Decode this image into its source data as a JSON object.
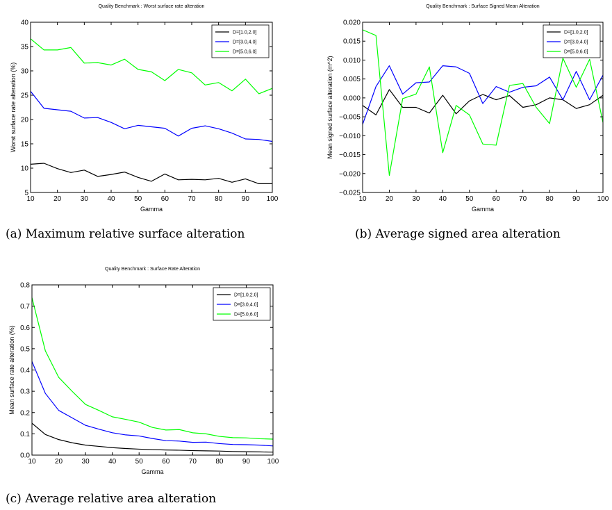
{
  "chart_data": [
    {
      "type": "line",
      "title": "Quality Benchmark : Worst surface rate alteration",
      "xlabel": "Gamma",
      "ylabel": "Worst surface rate alteration (%)",
      "xlim": [
        10,
        100
      ],
      "ylim": [
        5,
        40
      ],
      "xticks": [
        10,
        20,
        30,
        40,
        50,
        60,
        70,
        80,
        90,
        100
      ],
      "yticks": [
        5,
        10,
        15,
        20,
        25,
        30,
        35,
        40
      ],
      "ytick_labels": [
        "5",
        "10",
        "15",
        "20",
        "25",
        "30",
        "35",
        "40"
      ],
      "legend_position": "top-right",
      "grid": false,
      "x": [
        10,
        15,
        20,
        25,
        30,
        35,
        40,
        45,
        50,
        55,
        60,
        65,
        70,
        75,
        80,
        85,
        90,
        95,
        100
      ],
      "series": [
        {
          "name": "D=[1.0,2.0]",
          "color": "#000000",
          "values": [
            10.8,
            11.0,
            9.9,
            9.1,
            9.6,
            8.3,
            8.7,
            9.2,
            8.1,
            7.3,
            8.8,
            7.6,
            7.7,
            7.6,
            7.9,
            7.1,
            7.8,
            6.8,
            6.8
          ]
        },
        {
          "name": "D=[3.0,4.0]",
          "color": "#0000ff",
          "values": [
            25.8,
            22.3,
            22.0,
            21.7,
            20.3,
            20.4,
            19.4,
            18.1,
            18.8,
            18.5,
            18.2,
            16.6,
            18.2,
            18.7,
            18.1,
            17.2,
            16.0,
            15.9,
            15.5
          ]
        },
        {
          "name": "D=[5.0,6.0]",
          "color": "#00ff00",
          "values": [
            36.6,
            34.3,
            34.3,
            34.8,
            31.6,
            31.7,
            31.2,
            32.4,
            30.3,
            29.8,
            28.0,
            30.3,
            29.6,
            27.1,
            27.6,
            25.9,
            28.3,
            25.3,
            26.4
          ]
        }
      ]
    },
    {
      "type": "line",
      "title": "Quality Benchmark : Surface Signed Mean Alteration",
      "xlabel": "Gamma",
      "ylabel": "Mean signed surface alteration (m^2)",
      "xlim": [
        10,
        100
      ],
      "ylim": [
        -0.025,
        0.02
      ],
      "xticks": [
        10,
        20,
        30,
        40,
        50,
        60,
        70,
        80,
        90,
        100
      ],
      "yticks": [
        -0.025,
        -0.02,
        -0.015,
        -0.01,
        -0.005,
        0,
        0.005,
        0.01,
        0.015,
        0.02
      ],
      "ytick_labels": [
        "−0.025",
        "−0.020",
        "−0.015",
        "−0.010",
        "−0.005",
        "0.000",
        "0.005",
        "0.010",
        "0.015",
        "0.020"
      ],
      "legend_position": "top-right",
      "grid": false,
      "x": [
        10,
        15,
        20,
        25,
        30,
        35,
        40,
        45,
        50,
        55,
        60,
        65,
        70,
        75,
        80,
        85,
        90,
        95,
        100
      ],
      "series": [
        {
          "name": "D=[1.0,2.0]",
          "color": "#000000",
          "values": [
            -0.002,
            -0.0045,
            0.0022,
            -0.0025,
            -0.0025,
            -0.004,
            0.0007,
            -0.0042,
            -0.0008,
            0.0009,
            -0.0005,
            0.0006,
            -0.0025,
            -0.0018,
            0.0,
            -0.0005,
            -0.0028,
            -0.0018,
            0.0007
          ]
        },
        {
          "name": "D=[3.0,4.0]",
          "color": "#0000ff",
          "values": [
            -0.007,
            0.003,
            0.0085,
            0.001,
            0.004,
            0.0042,
            0.0085,
            0.0082,
            0.0065,
            -0.0015,
            0.003,
            0.0015,
            0.0028,
            0.0032,
            0.0055,
            -0.0005,
            0.007,
            -0.0005,
            0.006
          ]
        },
        {
          "name": "D=[5.0,6.0]",
          "color": "#00ff00",
          "values": [
            0.018,
            0.0165,
            -0.0205,
            -0.0002,
            0.001,
            0.0082,
            -0.0145,
            -0.002,
            -0.0045,
            -0.0122,
            -0.0125,
            0.0033,
            0.0038,
            -0.0025,
            -0.0068,
            0.0105,
            0.0028,
            0.0102,
            -0.0065
          ]
        }
      ]
    },
    {
      "type": "line",
      "title": "Quality Benchmark : Surface Rate Alteration",
      "xlabel": "Gamma",
      "ylabel": "Mean surface rate alteration (%)",
      "xlim": [
        10,
        100
      ],
      "ylim": [
        0,
        0.8
      ],
      "xticks": [
        10,
        20,
        30,
        40,
        50,
        60,
        70,
        80,
        90,
        100
      ],
      "yticks": [
        0,
        0.1,
        0.2,
        0.3,
        0.4,
        0.5,
        0.6,
        0.7,
        0.8
      ],
      "ytick_labels": [
        "0.0",
        "0.1",
        "0.2",
        "0.3",
        "0.4",
        "0.5",
        "0.6",
        "0.7",
        "0.8"
      ],
      "legend_position": "top-right",
      "grid": false,
      "x": [
        10,
        15,
        20,
        25,
        30,
        35,
        40,
        45,
        50,
        55,
        60,
        65,
        70,
        75,
        80,
        85,
        90,
        95,
        100
      ],
      "series": [
        {
          "name": "D=[1.0,2.0]",
          "color": "#000000",
          "values": [
            0.15,
            0.097,
            0.073,
            0.058,
            0.047,
            0.041,
            0.035,
            0.031,
            0.028,
            0.026,
            0.024,
            0.023,
            0.021,
            0.02,
            0.019,
            0.017,
            0.016,
            0.015,
            0.014
          ]
        },
        {
          "name": "D=[3.0,4.0]",
          "color": "#0000ff",
          "values": [
            0.44,
            0.29,
            0.21,
            0.175,
            0.14,
            0.122,
            0.105,
            0.095,
            0.09,
            0.078,
            0.068,
            0.066,
            0.06,
            0.061,
            0.054,
            0.05,
            0.049,
            0.047,
            0.043
          ]
        },
        {
          "name": "D=[5.0,6.0]",
          "color": "#00ff00",
          "values": [
            0.74,
            0.49,
            0.365,
            0.3,
            0.238,
            0.21,
            0.18,
            0.168,
            0.155,
            0.13,
            0.118,
            0.12,
            0.105,
            0.1,
            0.088,
            0.082,
            0.081,
            0.077,
            0.075
          ]
        }
      ]
    }
  ],
  "captions": [
    "(a) Maximum relative surface alteration",
    "(b) Average signed area alteration",
    "(c) Average relative area alteration"
  ]
}
